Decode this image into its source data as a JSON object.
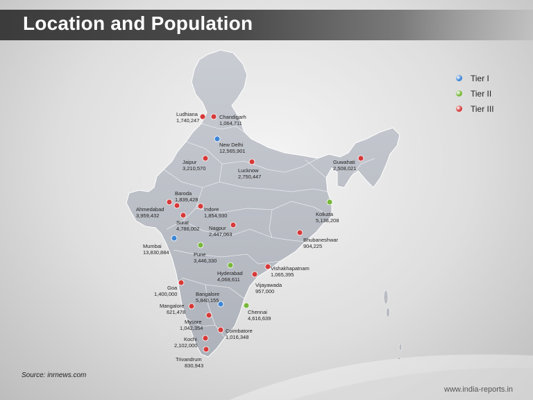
{
  "title": "Location and Population",
  "legend": [
    {
      "label": "Tier I",
      "color": "#3d86d6",
      "icon": "blue-pin-icon"
    },
    {
      "label": "Tier II",
      "color": "#78b83a",
      "icon": "green-pin-icon"
    },
    {
      "label": "Tier III",
      "color": "#d63a3a",
      "icon": "red-pin-icon"
    }
  ],
  "cities": [
    {
      "id": "ludhiana",
      "name": "Ludhiana",
      "population": "1,740,247",
      "tier": "III"
    },
    {
      "id": "chandigarh",
      "name": "Chandigarh",
      "population": "1,064,711",
      "tier": "III"
    },
    {
      "id": "new-delhi",
      "name": "New Delhi",
      "population": "12,565,901",
      "tier": "I"
    },
    {
      "id": "jaipur",
      "name": "Jaipur",
      "population": "3,210,570",
      "tier": "III"
    },
    {
      "id": "lucknow",
      "name": "Lucknow",
      "population": "2,750,447",
      "tier": "III"
    },
    {
      "id": "guwahati",
      "name": "Guwahati",
      "population": "2,508,021",
      "tier": "III"
    },
    {
      "id": "baroda",
      "name": "Baroda",
      "population": "1,839,428",
      "tier": "III"
    },
    {
      "id": "ahmedabad",
      "name": "Ahmedabad",
      "population": "3,959,432",
      "tier": "III"
    },
    {
      "id": "indore",
      "name": "Indore",
      "population": "1,854,930",
      "tier": "III"
    },
    {
      "id": "surat",
      "name": "Surat",
      "population": "4,786,002",
      "tier": "III"
    },
    {
      "id": "kolkata",
      "name": "Kolkata",
      "population": "5,138,208",
      "tier": "II"
    },
    {
      "id": "nagpur",
      "name": "Nagpur",
      "population": "2,447,063",
      "tier": "III"
    },
    {
      "id": "bhubaneshwar",
      "name": "Bhubaneshwar",
      "population": "904,225",
      "tier": "III"
    },
    {
      "id": "mumbai",
      "name": "Mumbai",
      "population": "13,830,884",
      "tier": "I"
    },
    {
      "id": "pune",
      "name": "Pune",
      "population": "3,446,330",
      "tier": "II"
    },
    {
      "id": "hyderabad",
      "name": "Hyderabad",
      "population": "4,068,611",
      "tier": "II"
    },
    {
      "id": "vishakhapatnam",
      "name": "Vishakhapatnam",
      "population": "1,065,395",
      "tier": "III"
    },
    {
      "id": "vijayawada",
      "name": "Vijayawada",
      "population": "957,000",
      "tier": "III"
    },
    {
      "id": "goa",
      "name": "Goa",
      "population": "1,400,000",
      "tier": "III"
    },
    {
      "id": "bangalore",
      "name": "Bangalore",
      "population": "5,840,155",
      "tier": "I"
    },
    {
      "id": "mangalore",
      "name": "Mangalore",
      "population": "621,478",
      "tier": "III"
    },
    {
      "id": "chennai",
      "name": "Chennai",
      "population": "4,616,639",
      "tier": "II"
    },
    {
      "id": "mysore",
      "name": "Mysore",
      "population": "1,042,354",
      "tier": "III"
    },
    {
      "id": "coimbatore",
      "name": "Coimbatore",
      "population": "1,016,348",
      "tier": "III"
    },
    {
      "id": "kochi",
      "name": "Kochi",
      "population": "2,102,000",
      "tier": "III"
    },
    {
      "id": "trivandrum",
      "name": "Trivandrum",
      "population": "830,943",
      "tier": "III"
    }
  ],
  "source": "Source: inrnews.com",
  "website": "www.india-reports.in"
}
